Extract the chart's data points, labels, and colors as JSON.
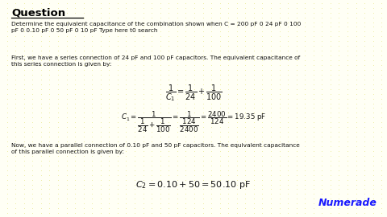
{
  "background_color": "#fffff5",
  "dot_color": "#cccc00",
  "title": "Question",
  "question_text": "Determine the equivalent capacitance of the combination shown when C = 200 pF 0 24 pF 0 100\npF 0 0.10 pF 0 50 pF 0 10 pF Type here t0 search",
  "para1": "First, we have a series connection of 24 pF and 100 pF capacitors. The equivalent capacitance of\nthis series connection is given by:",
  "formula1_line1": "$\\dfrac{1}{C_1} = \\dfrac{1}{24} + \\dfrac{1}{100}$",
  "formula1_line2": "$C_1 = \\dfrac{1}{\\dfrac{1}{24} + \\dfrac{1}{100}} = \\dfrac{1}{\\dfrac{124}{2400}} = \\dfrac{2400}{124} = 19.35\\ \\mathrm{pF}$",
  "para2": "Now, we have a parallel connection of 0.10 pF and 50 pF capacitors. The equivalent capacitance\nof this parallel connection is given by:",
  "formula2": "$C_2 = 0.10 + 50 = 50.10\\ \\mathrm{pF}$",
  "numerade_text": "Numerade",
  "numerade_color": "#1a1aff",
  "title_color": "#000000",
  "body_color": "#111111"
}
